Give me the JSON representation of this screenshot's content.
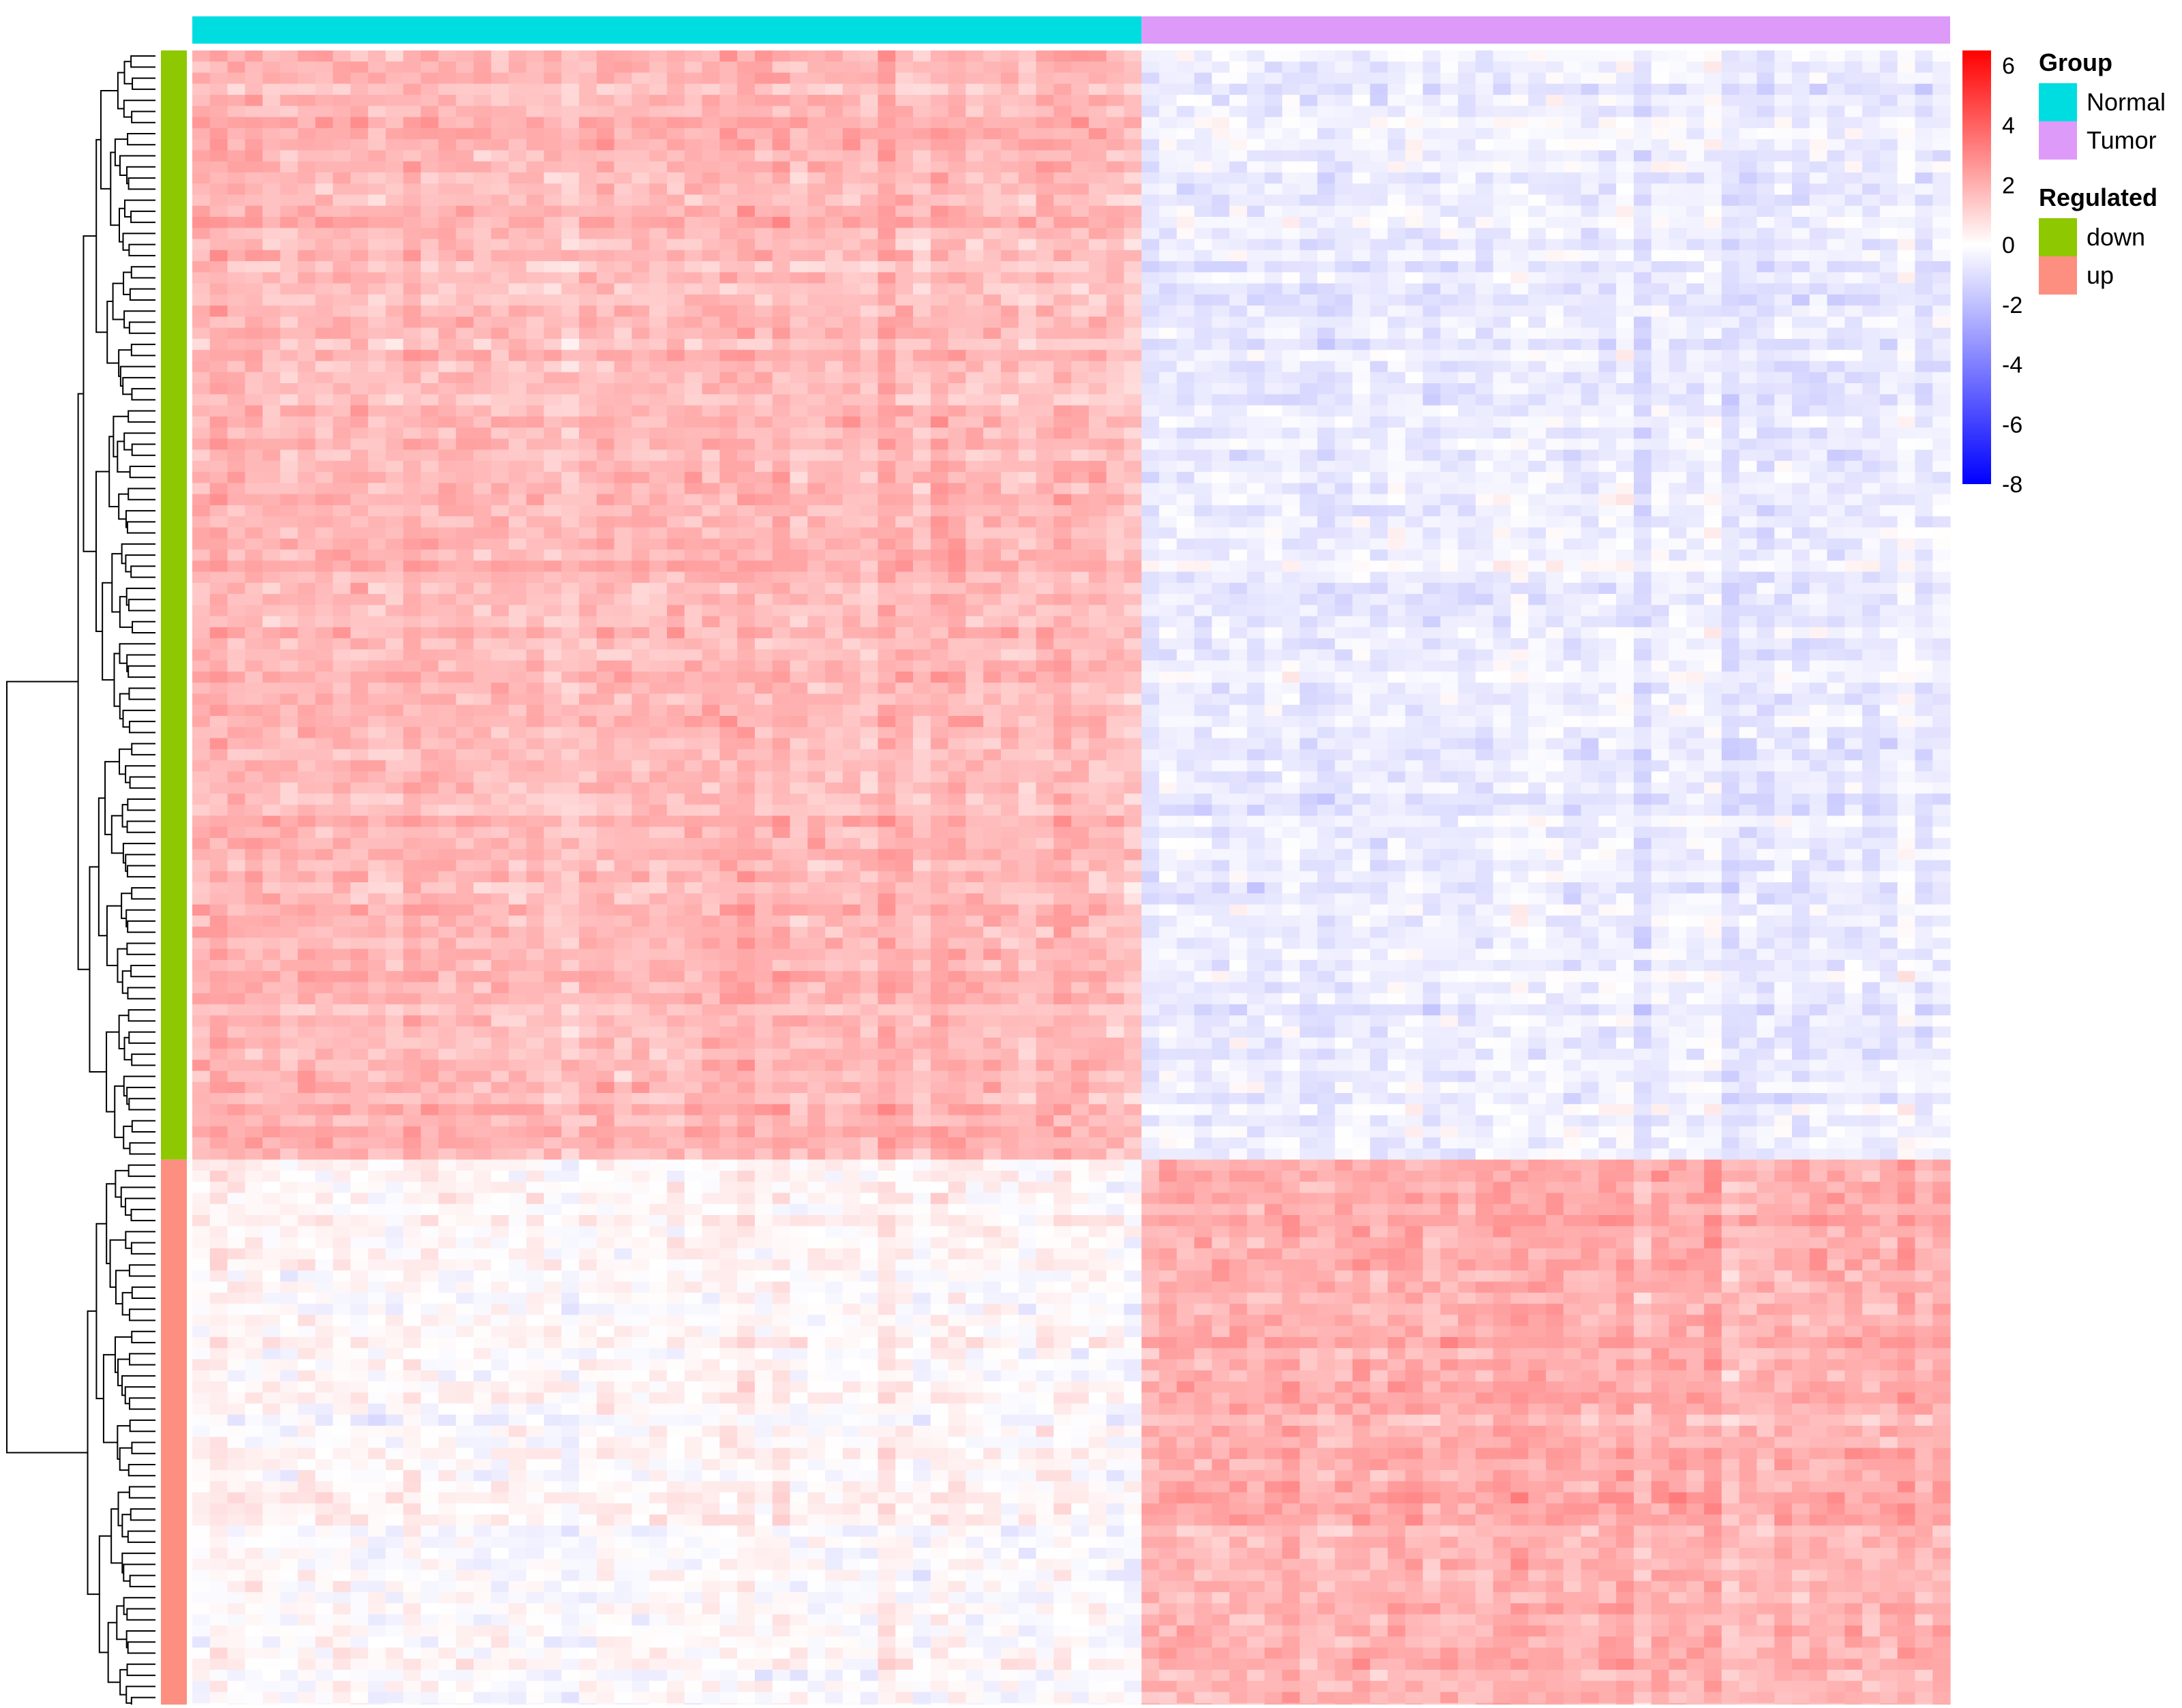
{
  "chart_data": {
    "type": "heatmap",
    "title": "",
    "xlabel": "",
    "ylabel": "",
    "color_scale": {
      "min": -8,
      "max": 6.5,
      "stops": [
        {
          "value": -8,
          "color": "#0000FF"
        },
        {
          "value": 0,
          "color": "#FFFFFF"
        },
        {
          "value": 6.5,
          "color": "#FF0000"
        }
      ],
      "ticks": [
        "6",
        "4",
        "2",
        "0",
        "-2",
        "-4",
        "-6",
        "-8"
      ],
      "tick_values": [
        6,
        4,
        2,
        0,
        -2,
        -4,
        -6,
        -8
      ]
    },
    "column_annotation": {
      "title": "Group",
      "levels": [
        {
          "label": "Normal",
          "color": "#00DDE0",
          "count": 54
        },
        {
          "label": "Tumor",
          "color": "#DE9AF8",
          "count": 46
        }
      ]
    },
    "row_annotation": {
      "title": "Regulated",
      "levels": [
        {
          "label": "down",
          "color": "#8DC800",
          "count": 100
        },
        {
          "label": "up",
          "color": "#FC8F80",
          "count": 50
        }
      ]
    },
    "blocks": [
      {
        "regulated": "down",
        "group": "Normal",
        "mean_value": 1.8
      },
      {
        "regulated": "down",
        "group": "Tumor",
        "mean_value": -0.6
      },
      {
        "regulated": "up",
        "group": "Normal",
        "mean_value": 0.1
      },
      {
        "regulated": "up",
        "group": "Tumor",
        "mean_value": 2.0
      }
    ],
    "row_dendrogram": true,
    "grid": false,
    "legend_position": "right"
  }
}
